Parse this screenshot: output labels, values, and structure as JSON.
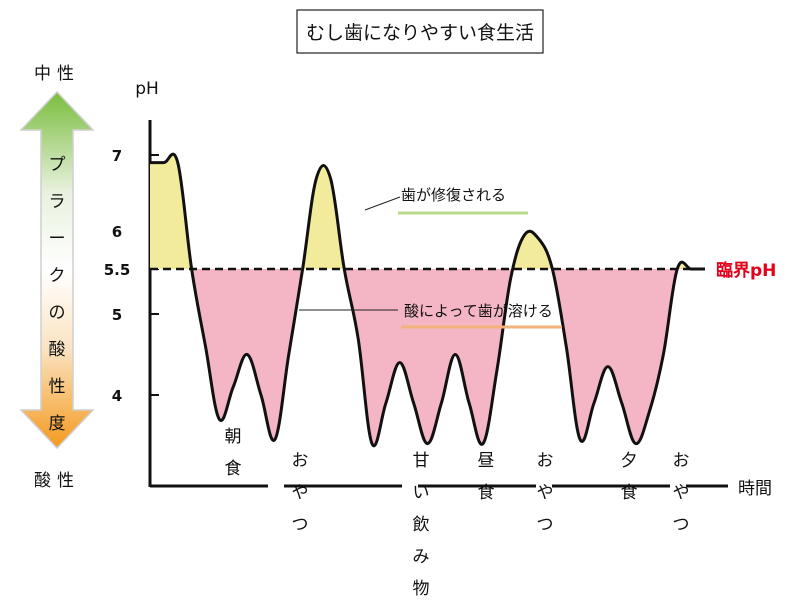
{
  "title": "むし歯になりやすい食生活",
  "ph_label": "pH",
  "y_ticks": [
    "7",
    "6",
    "5.5",
    "5",
    "4"
  ],
  "critical_ph_label": "臨界pH",
  "time_label": "時間",
  "side_scale": {
    "top_label": "中性",
    "bottom_label": "酸性",
    "middle_label": "プラークの酸性度"
  },
  "annotations": {
    "repair": "歯が修復される",
    "dissolve": "酸によって歯が溶ける"
  },
  "meals": [
    "朝食",
    "おやつ",
    "甘い飲み物",
    "昼食",
    "おやつ",
    "夕食",
    "おやつ"
  ],
  "colors": {
    "repair_fill": "#f1eb9b",
    "dissolve_fill": "#f4b6c5",
    "critical_line_label": "#e3001b",
    "repair_underline": "#b9d98a",
    "dissolve_underline": "#f2b27a",
    "arrow_top": "#79bd3c",
    "arrow_bottom": "#f39a1e"
  },
  "chart_data": {
    "type": "line",
    "ylabel": "pH",
    "xlabel": "時間",
    "critical_ph": 5.5,
    "y_ticks": [
      7,
      6,
      5.5,
      5,
      4
    ],
    "series": [
      {
        "x": [
          0,
          1,
          2,
          3,
          4,
          5,
          6,
          7,
          8,
          9,
          10,
          11,
          12,
          13,
          14,
          15,
          16,
          17,
          18,
          19,
          20,
          21,
          22,
          23,
          24,
          25,
          26,
          27,
          28,
          29,
          30,
          31,
          32,
          33,
          34,
          35,
          36,
          37,
          38,
          39,
          40
        ],
        "values": [
          6.9,
          6.9,
          6.9,
          5.5,
          4.6,
          3.7,
          4.1,
          4.5,
          4.0,
          3.45,
          4.5,
          5.5,
          6.7,
          6.7,
          5.5,
          4.7,
          3.4,
          3.9,
          4.4,
          3.9,
          3.4,
          3.9,
          4.5,
          3.9,
          3.4,
          4.3,
          5.4,
          5.95,
          5.9,
          5.5,
          4.6,
          3.45,
          3.9,
          4.35,
          3.9,
          3.4,
          3.8,
          4.5,
          5.5,
          5.5,
          5.5
        ]
      }
    ]
  }
}
